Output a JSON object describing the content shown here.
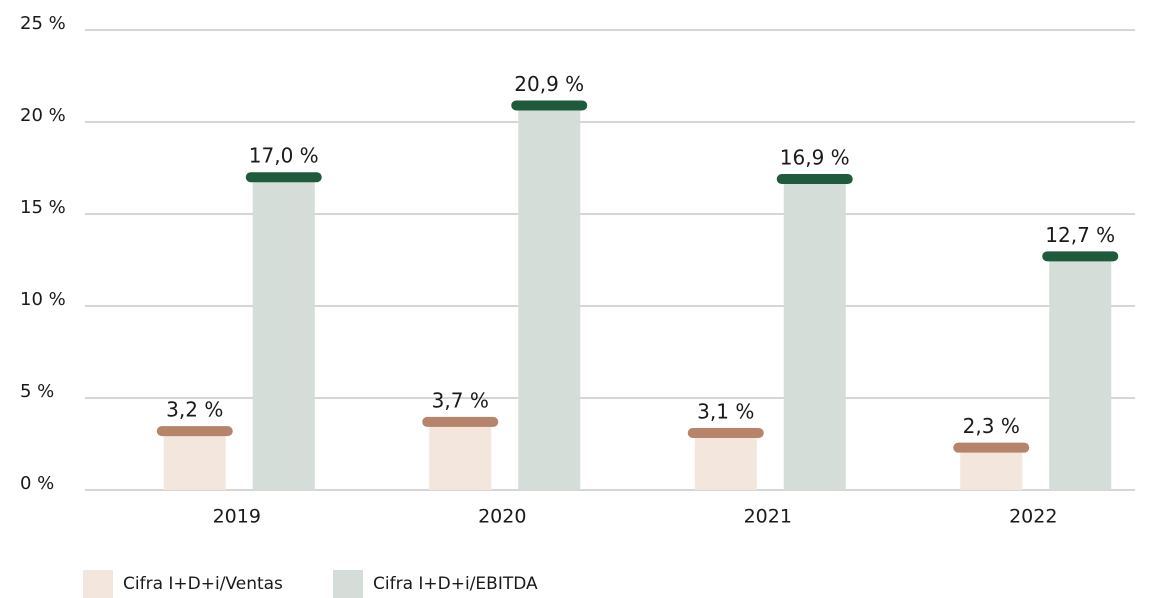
{
  "chart_data": {
    "type": "bar",
    "categories": [
      "2019",
      "2020",
      "2021",
      "2022"
    ],
    "series": [
      {
        "name": "Cifra I+D+i/Ventas",
        "color": "#f2e6dd",
        "cap_color": "#b5846a",
        "values": [
          3.2,
          3.7,
          3.1,
          2.3
        ],
        "value_labels": [
          "3,2 %",
          "3,7 %",
          "3,1 %",
          "2,3 %"
        ]
      },
      {
        "name": "Cifra I+D+i/EBITDA",
        "color": "#d4ddd7",
        "cap_color": "#1e5a3b",
        "values": [
          17.0,
          20.9,
          16.9,
          12.7
        ],
        "value_labels": [
          "17,0 %",
          "20,9 %",
          "16,9 %",
          "12,7 %"
        ]
      }
    ],
    "ylim": [
      0,
      25
    ],
    "yticks": [
      {
        "value": 0,
        "label": "0 %"
      },
      {
        "value": 5,
        "label": "5 %"
      },
      {
        "value": 10,
        "label": "10 %"
      },
      {
        "value": 15,
        "label": "15 %"
      },
      {
        "value": 20,
        "label": "20 %"
      },
      {
        "value": 25,
        "label": "25 %"
      }
    ],
    "grid": true,
    "legend": "bottom-left"
  }
}
